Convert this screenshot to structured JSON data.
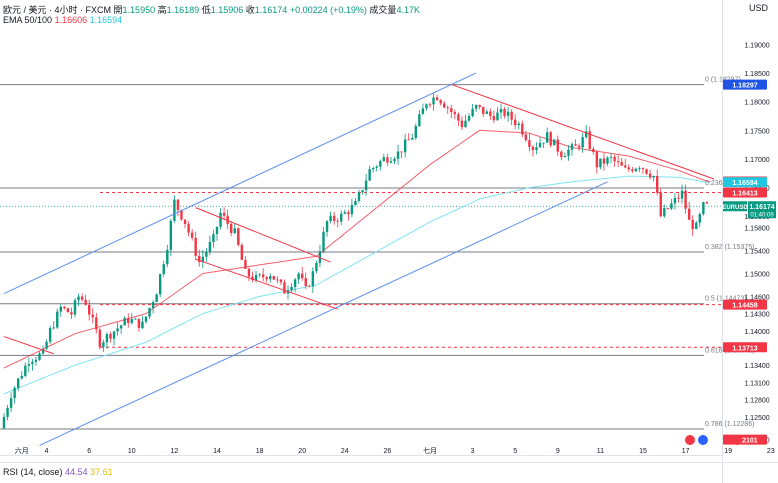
{
  "header": {
    "symbol": "欧元 / 美元 · 4小时 · FXCM",
    "open_label": "開",
    "open": "1.15950",
    "high_label": "高",
    "high": "1.16189",
    "low_label": "低",
    "low": "1.15906",
    "close_label": "收",
    "close": "1.16174",
    "change": "+0.00224 (+0.19%)",
    "volume_label": "成交量",
    "volume": "4.17K",
    "ema_label": "EMA 50/100",
    "ema50": "1.16606",
    "ema100": "1.16594",
    "currency": "USD",
    "rsi_label": "RSI (14, close)",
    "rsi1": "44.54",
    "rsi2": "37.61"
  },
  "colors": {
    "up": "#089981",
    "down": "#f23645",
    "ema50": "#f23645",
    "ema100": "#7fe4f2",
    "channel": "#5b8def",
    "wedge": "#f23645",
    "level": "#787b86"
  },
  "chart_data": {
    "type": "candlestick",
    "title": "欧元 / 美元 · 4小时 · FXCM",
    "ylim": [
      1.1185,
      1.1925
    ],
    "y_ticks": [
      "1.19000",
      "1.18500",
      "1.18000",
      "1.17500",
      "1.17000",
      "1.16500",
      "1.16000",
      "1.15800",
      "1.15400",
      "1.15000",
      "1.14600",
      "1.14300",
      "1.14000",
      "1.13400",
      "1.13100",
      "1.12800",
      "1.12500",
      "1.12100"
    ],
    "y_tick_values": [
      1.19,
      1.185,
      1.18,
      1.175,
      1.17,
      1.165,
      1.16,
      1.158,
      1.154,
      1.15,
      1.146,
      1.143,
      1.14,
      1.134,
      1.131,
      1.128,
      1.125,
      1.121
    ],
    "x_ticks": [
      {
        "label": "六月",
        "i": 5
      },
      {
        "label": "4",
        "i": 12
      },
      {
        "label": "6",
        "i": 24
      },
      {
        "label": "10",
        "i": 36
      },
      {
        "label": "12",
        "i": 48
      },
      {
        "label": "14",
        "i": 60
      },
      {
        "label": "18",
        "i": 72
      },
      {
        "label": "20",
        "i": 84
      },
      {
        "label": "24",
        "i": 96
      },
      {
        "label": "26",
        "i": 108
      },
      {
        "label": "七月",
        "i": 120
      },
      {
        "label": "3",
        "i": 132
      },
      {
        "label": "5",
        "i": 144
      },
      {
        "label": "9",
        "i": 156
      },
      {
        "label": "11",
        "i": 168
      },
      {
        "label": "15",
        "i": 180
      },
      {
        "label": "17",
        "i": 192
      },
      {
        "label": "19",
        "i": 204
      },
      {
        "label": "23",
        "i": 216
      }
    ],
    "fib_levels": [
      {
        "label": "0 (1.18297)",
        "value": 1.18297
      },
      {
        "label": "0.236 (1.16492)",
        "value": 1.16492
      },
      {
        "label": "0.382 (1.15375)",
        "value": 1.15375
      },
      {
        "label": "0.5 (1.14473)",
        "value": 1.14473
      },
      {
        "label": "0.618 (1.13571)",
        "value": 1.13571
      },
      {
        "label": "0.786 (1.12286)",
        "value": 1.12286
      }
    ],
    "price_tags": [
      {
        "label": "1.18297",
        "value": 1.18297,
        "color": "#1e53e5"
      },
      {
        "label": "1.16606",
        "value": 1.16606,
        "color": "#f23645"
      },
      {
        "label": "1.16594",
        "value": 1.16594,
        "color": "#22c7e0"
      },
      {
        "label": "1.16413",
        "value": 1.16413,
        "color": "#f23645"
      },
      {
        "label": "1.14458",
        "value": 1.14458,
        "color": "#f23645"
      },
      {
        "label": "1.13713",
        "value": 1.13713,
        "color": "#f23645"
      },
      {
        "label": "1.12101",
        "value": 1.12101,
        "color": "#f23645"
      }
    ],
    "current": {
      "symbol": "EURUSD",
      "price": "1.16174",
      "countdown": "01:40:09",
      "value": 1.16174
    },
    "red_dashed_levels": [
      1.16413,
      1.14458,
      1.13713
    ],
    "anchors": [
      {
        "i": 0,
        "v": 1.123
      },
      {
        "i": 3,
        "v": 1.129
      },
      {
        "i": 8,
        "v": 1.135
      },
      {
        "i": 12,
        "v": 1.136
      },
      {
        "i": 14,
        "v": 1.14
      },
      {
        "i": 17,
        "v": 1.144
      },
      {
        "i": 20,
        "v": 1.143
      },
      {
        "i": 22,
        "v": 1.146
      },
      {
        "i": 24,
        "v": 1.145
      },
      {
        "i": 28,
        "v": 1.138
      },
      {
        "i": 32,
        "v": 1.14
      },
      {
        "i": 36,
        "v": 1.142
      },
      {
        "i": 40,
        "v": 1.141
      },
      {
        "i": 44,
        "v": 1.147
      },
      {
        "i": 47,
        "v": 1.155
      },
      {
        "i": 49,
        "v": 1.1625
      },
      {
        "i": 52,
        "v": 1.159
      },
      {
        "i": 56,
        "v": 1.152
      },
      {
        "i": 60,
        "v": 1.156
      },
      {
        "i": 62,
        "v": 1.1605
      },
      {
        "i": 66,
        "v": 1.157
      },
      {
        "i": 69,
        "v": 1.15
      },
      {
        "i": 72,
        "v": 1.149
      },
      {
        "i": 76,
        "v": 1.15
      },
      {
        "i": 80,
        "v": 1.147
      },
      {
        "i": 84,
        "v": 1.15
      },
      {
        "i": 86,
        "v": 1.147
      },
      {
        "i": 88,
        "v": 1.15
      },
      {
        "i": 92,
        "v": 1.159
      },
      {
        "i": 96,
        "v": 1.16
      },
      {
        "i": 100,
        "v": 1.162
      },
      {
        "i": 104,
        "v": 1.168
      },
      {
        "i": 108,
        "v": 1.17
      },
      {
        "i": 112,
        "v": 1.171
      },
      {
        "i": 116,
        "v": 1.174
      },
      {
        "i": 120,
        "v": 1.18
      },
      {
        "i": 123,
        "v": 1.181
      },
      {
        "i": 126,
        "v": 1.179
      },
      {
        "i": 130,
        "v": 1.176
      },
      {
        "i": 134,
        "v": 1.179
      },
      {
        "i": 138,
        "v": 1.1775
      },
      {
        "i": 142,
        "v": 1.178
      },
      {
        "i": 146,
        "v": 1.176
      },
      {
        "i": 150,
        "v": 1.172
      },
      {
        "i": 154,
        "v": 1.174
      },
      {
        "i": 158,
        "v": 1.171
      },
      {
        "i": 162,
        "v": 1.172
      },
      {
        "i": 165,
        "v": 1.174
      },
      {
        "i": 168,
        "v": 1.169
      },
      {
        "i": 172,
        "v": 1.17
      },
      {
        "i": 176,
        "v": 1.168
      },
      {
        "i": 180,
        "v": 1.169
      },
      {
        "i": 184,
        "v": 1.167
      },
      {
        "i": 186,
        "v": 1.16
      },
      {
        "i": 189,
        "v": 1.162
      },
      {
        "i": 192,
        "v": 1.164
      },
      {
        "i": 194,
        "v": 1.159
      },
      {
        "i": 196,
        "v": 1.158
      },
      {
        "i": 198,
        "v": 1.1617
      }
    ],
    "ema50_anchors": [
      {
        "i": 0,
        "v": 1.1335
      },
      {
        "i": 20,
        "v": 1.1395
      },
      {
        "i": 40,
        "v": 1.143
      },
      {
        "i": 56,
        "v": 1.15
      },
      {
        "i": 72,
        "v": 1.1515
      },
      {
        "i": 88,
        "v": 1.153
      },
      {
        "i": 104,
        "v": 1.161
      },
      {
        "i": 120,
        "v": 1.169
      },
      {
        "i": 134,
        "v": 1.175
      },
      {
        "i": 148,
        "v": 1.1745
      },
      {
        "i": 160,
        "v": 1.172
      },
      {
        "i": 176,
        "v": 1.1705
      },
      {
        "i": 190,
        "v": 1.168
      },
      {
        "i": 198,
        "v": 1.1661
      }
    ],
    "ema100_anchors": [
      {
        "i": 0,
        "v": 1.129
      },
      {
        "i": 20,
        "v": 1.134
      },
      {
        "i": 40,
        "v": 1.138
      },
      {
        "i": 56,
        "v": 1.143
      },
      {
        "i": 72,
        "v": 1.146
      },
      {
        "i": 88,
        "v": 1.148
      },
      {
        "i": 104,
        "v": 1.1535
      },
      {
        "i": 120,
        "v": 1.159
      },
      {
        "i": 134,
        "v": 1.163
      },
      {
        "i": 148,
        "v": 1.165
      },
      {
        "i": 160,
        "v": 1.166
      },
      {
        "i": 176,
        "v": 1.167
      },
      {
        "i": 190,
        "v": 1.1668
      },
      {
        "i": 198,
        "v": 1.1659
      }
    ],
    "channel_upper": [
      {
        "i": 0,
        "v": 1.1465
      },
      {
        "i": 133,
        "v": 1.185
      }
    ],
    "channel_lower": [
      {
        "i": 10,
        "v": 1.12
      },
      {
        "i": 170,
        "v": 1.166
      }
    ],
    "downtrend": [
      {
        "i": 126,
        "v": 1.183
      },
      {
        "i": 200,
        "v": 1.1665
      }
    ],
    "wedge_top": [
      {
        "i": 54,
        "v": 1.1615
      },
      {
        "i": 92,
        "v": 1.152
      }
    ],
    "wedge_bottom": [
      {
        "i": 54,
        "v": 1.1525
      },
      {
        "i": 94,
        "v": 1.1438
      }
    ],
    "left_line": [
      {
        "i": 0,
        "v": 1.139
      },
      {
        "i": 14,
        "v": 1.136
      }
    ]
  }
}
